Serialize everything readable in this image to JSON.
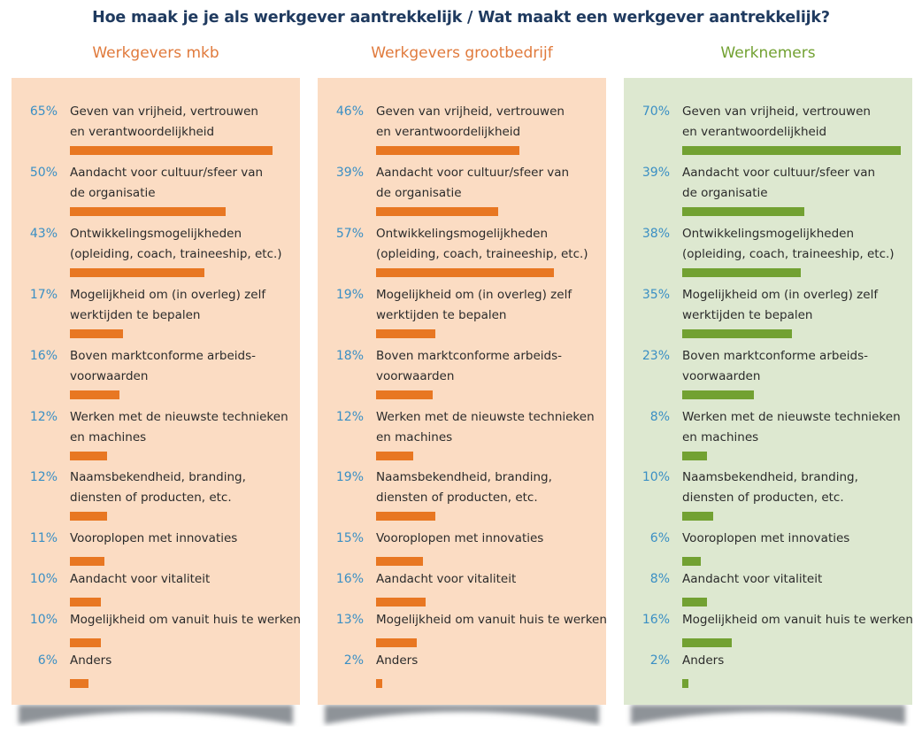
{
  "title": "Hoe maak je je als werkgever aantrekkelijk / Wat maakt een werkgever aantrekkelijk?",
  "colors": {
    "title": "#1f3a5f",
    "percent": "#3a8fc4",
    "orange_bar": "#e87722",
    "orange_bg": "#fbdcc3",
    "orange_heading": "#e07a3c",
    "green_bar": "#72a132",
    "green_bg": "#dde8d0",
    "green_heading": "#72a132"
  },
  "chart_data": {
    "type": "bar",
    "orientation": "horizontal",
    "title": "Hoe maak je je als werkgever aantrekkelijk / Wat maakt een werkgever aantrekkelijk?",
    "xlabel": "",
    "ylabel": "",
    "xlim": [
      0,
      70
    ],
    "unit": "%",
    "categories": [
      [
        "Geven van vrijheid, vertrouwen",
        "en verantwoordelijkheid"
      ],
      [
        "Aandacht voor cultuur/sfeer van",
        "de organisatie"
      ],
      [
        "Ontwikkelingsmogelijkheden",
        "(opleiding, coach, traineeship, etc.)"
      ],
      [
        "Mogelijkheid om (in overleg) zelf",
        "werktijden te bepalen"
      ],
      [
        "Boven marktconforme arbeids-",
        "voorwaarden"
      ],
      [
        "Werken met de nieuwste technieken",
        "en machines"
      ],
      [
        "Naamsbekendheid, branding,",
        "diensten of producten, etc."
      ],
      [
        "Vooroplopen met innovaties"
      ],
      [
        "Aandacht voor vitaliteit"
      ],
      [
        "Mogelijkheid om vanuit huis te werken"
      ],
      [
        "Anders"
      ]
    ],
    "series": [
      {
        "name": "Werkgevers mkb",
        "theme": "orange",
        "values": [
          65,
          50,
          43,
          17,
          16,
          12,
          12,
          11,
          10,
          10,
          6
        ]
      },
      {
        "name": "Werkgevers grootbedrijf",
        "theme": "orange",
        "values": [
          46,
          39,
          57,
          19,
          18,
          12,
          19,
          15,
          16,
          13,
          2
        ]
      },
      {
        "name": "Werknemers",
        "theme": "green",
        "values": [
          70,
          39,
          38,
          35,
          23,
          8,
          10,
          6,
          8,
          16,
          2
        ]
      }
    ]
  }
}
